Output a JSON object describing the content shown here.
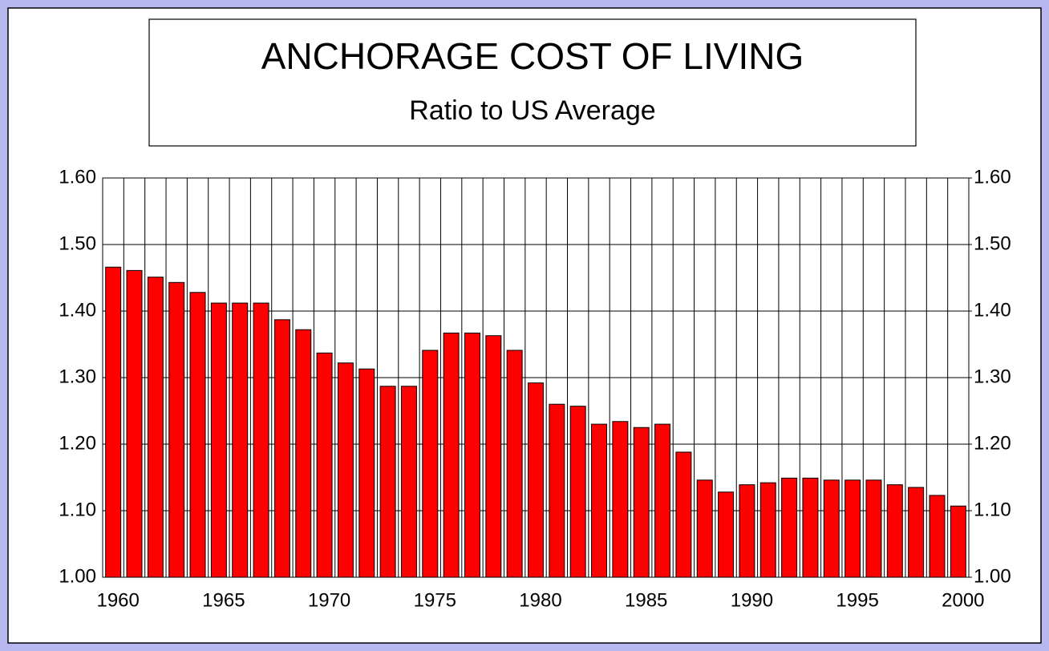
{
  "chart_data": {
    "type": "bar",
    "title": "ANCHORAGE COST OF LIVING",
    "subtitle": "Ratio to US Average",
    "categories": [
      "1960",
      null,
      null,
      null,
      null,
      "1965",
      null,
      null,
      null,
      null,
      "1970",
      null,
      null,
      null,
      null,
      "1975",
      null,
      null,
      null,
      null,
      "1980",
      null,
      null,
      null,
      null,
      "1985",
      null,
      null,
      null,
      null,
      "1990",
      null,
      null,
      null,
      null,
      "1995",
      null,
      null,
      null,
      null,
      "2000"
    ],
    "values": [
      1.466,
      1.461,
      1.451,
      1.443,
      1.428,
      1.412,
      1.412,
      1.412,
      1.387,
      1.372,
      1.337,
      1.322,
      1.313,
      1.287,
      1.287,
      1.341,
      1.367,
      1.367,
      1.363,
      1.341,
      1.292,
      1.26,
      1.257,
      1.23,
      1.234,
      1.225,
      1.23,
      1.188,
      1.146,
      1.128,
      1.139,
      1.142,
      1.149,
      1.149,
      1.146,
      1.146,
      1.146,
      1.139,
      1.135,
      1.123,
      1.107
    ],
    "color": "#ff0000",
    "ylim": [
      1.0,
      1.6
    ],
    "yticks": [
      {
        "value": 1.0,
        "label": "1.00"
      },
      {
        "value": 1.1,
        "label": "1.10"
      },
      {
        "value": 1.2,
        "label": "1.20"
      },
      {
        "value": 1.3,
        "label": "1.30"
      },
      {
        "value": 1.4,
        "label": "1.40"
      },
      {
        "value": 1.5,
        "label": "1.50"
      },
      {
        "value": 1.6,
        "label": "1.60"
      }
    ],
    "y2lim": [
      1.0,
      1.6
    ],
    "y2ticks": [
      {
        "value": 1.0,
        "label": "1.00"
      },
      {
        "value": 1.1,
        "label": "1.10"
      },
      {
        "value": 1.2,
        "label": "1.20"
      },
      {
        "value": 1.3,
        "label": "1.30"
      },
      {
        "value": 1.4,
        "label": "1.40"
      },
      {
        "value": 1.5,
        "label": "1.50"
      },
      {
        "value": 1.6,
        "label": "1.60"
      }
    ],
    "grid": true
  }
}
